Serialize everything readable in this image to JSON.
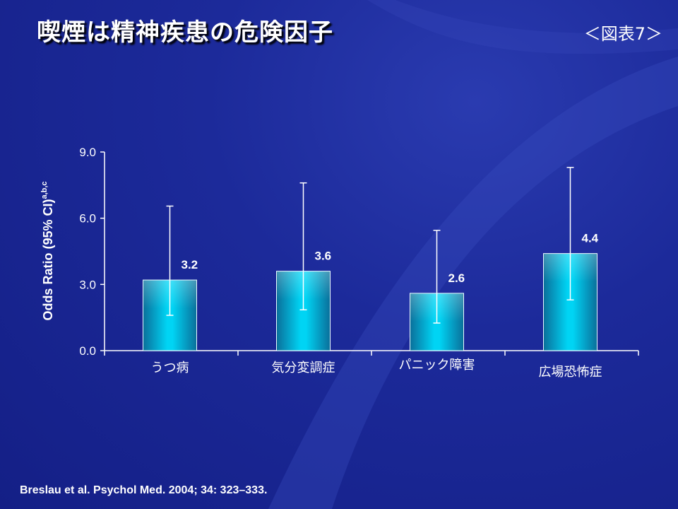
{
  "header": {
    "title": "喫煙は精神疾患の危険因子",
    "figure_label": "＜図表7＞"
  },
  "citation": "Breslau et al. Psychol Med. 2004; 34: 323–333.",
  "colors": {
    "background": "#1c2a9a",
    "bar_top": "#b8f2ff",
    "bar_mid": "#00c8ee",
    "bar_bottom": "#0a6f9a",
    "axis": "#ffffff"
  },
  "chart_data": {
    "type": "bar",
    "ylabel": "Odds Ratio (95% CI)",
    "ylabel_superscript": "a,b,c",
    "ylim": [
      0,
      9
    ],
    "yticks": [
      0,
      3,
      6,
      9
    ],
    "ytick_labels": [
      "0.0",
      "3.0",
      "6.0",
      "9.0"
    ],
    "categories": [
      "うつ病",
      "気分変調症",
      "パニック障害",
      "広場恐怖症"
    ],
    "values": [
      3.2,
      3.6,
      2.6,
      4.4
    ],
    "value_labels": [
      "3.2",
      "3.6",
      "2.6",
      "4.4"
    ],
    "ci_low": [
      1.6,
      1.85,
      1.25,
      2.3
    ],
    "ci_high": [
      6.55,
      7.6,
      5.45,
      8.3
    ],
    "grid": false,
    "legend": "none"
  }
}
